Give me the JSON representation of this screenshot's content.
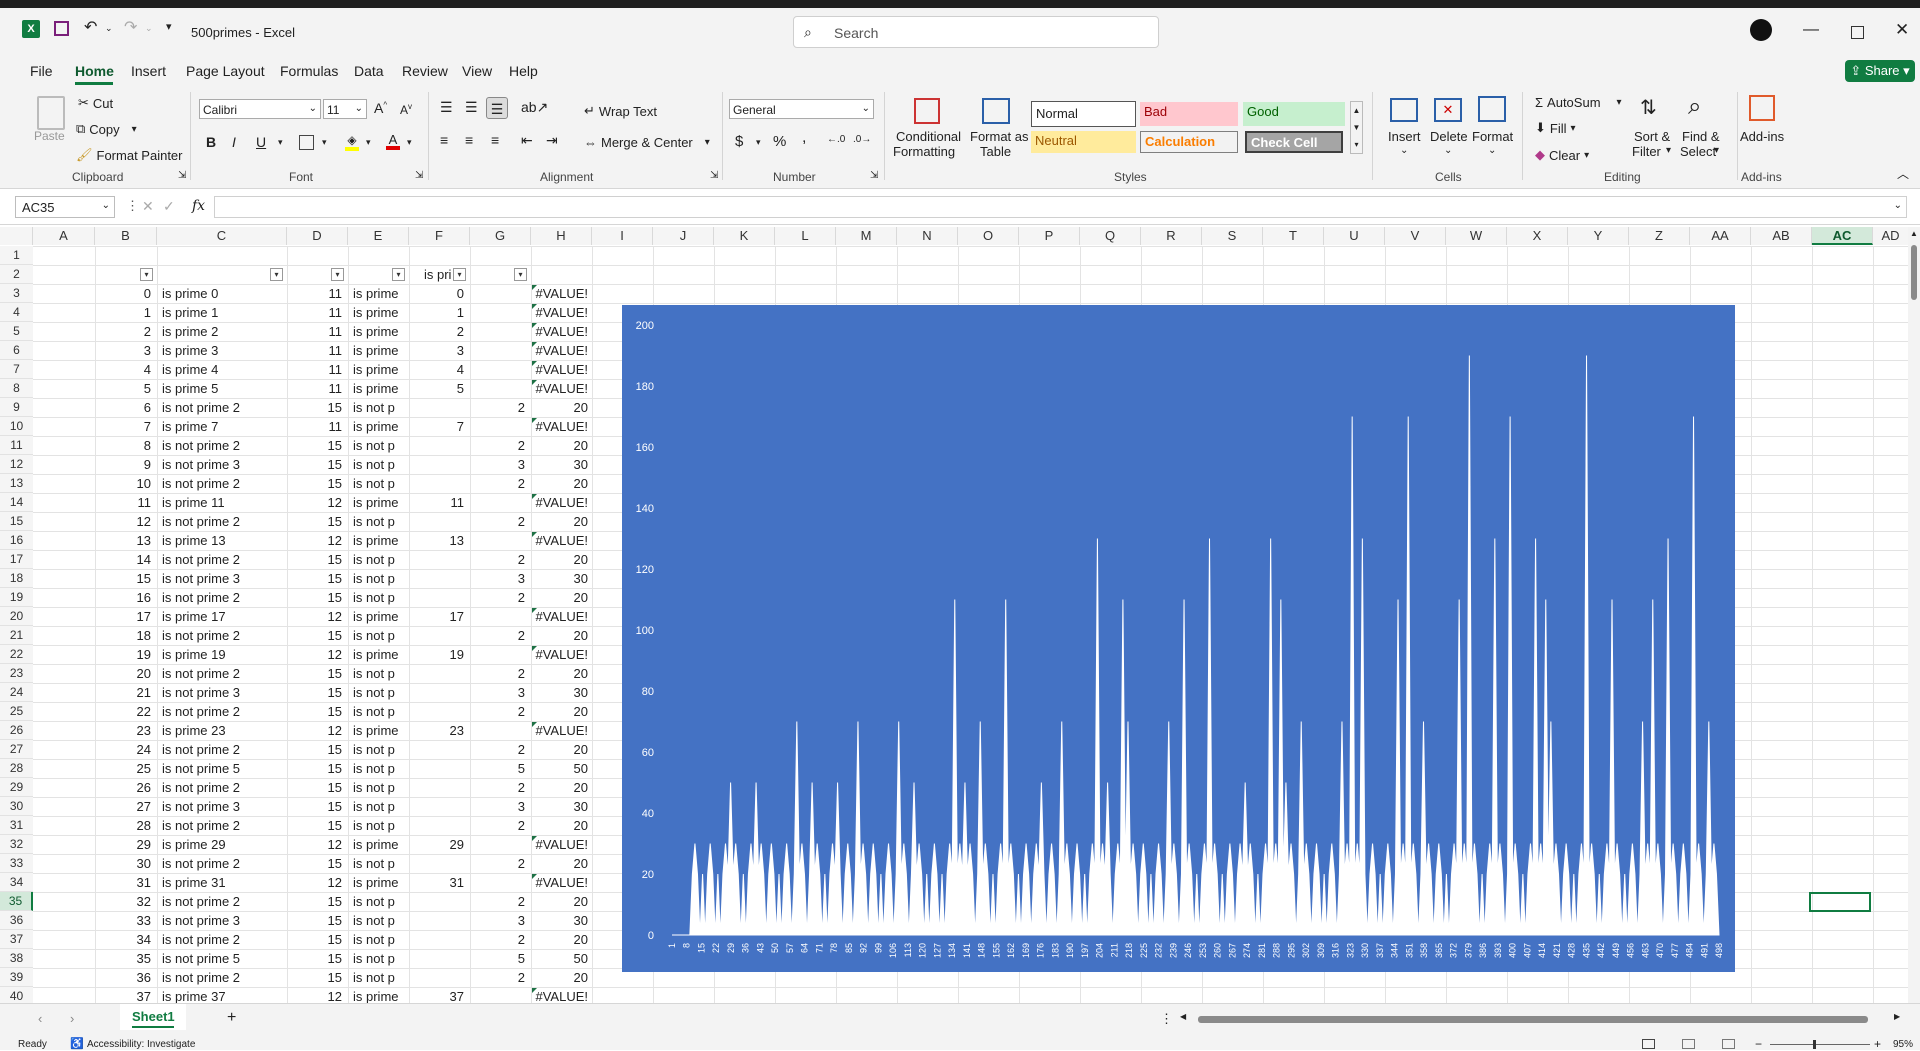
{
  "titlebar": {
    "doc_title": "500primes  -  Excel",
    "search_placeholder": "Search"
  },
  "menu": [
    "File",
    "Home",
    "Insert",
    "Page Layout",
    "Formulas",
    "Data",
    "Review",
    "View",
    "Help"
  ],
  "share_label": "Share",
  "ribbon": {
    "clipboard": {
      "paste": "Paste",
      "cut": "Cut",
      "copy": "Copy",
      "format_painter": "Format Painter",
      "label": "Clipboard"
    },
    "font": {
      "name": "Calibri",
      "size": "11",
      "label": "Font",
      "bold": "B",
      "italic": "I",
      "underline": "U"
    },
    "alignment": {
      "wrap": "Wrap Text",
      "merge": "Merge & Center",
      "label": "Alignment"
    },
    "number": {
      "format": "General",
      "currency": "$",
      "percent": "%",
      "label": "Number"
    },
    "styles": {
      "conditional": "Conditional",
      "conditional2": "Formatting",
      "format_table": "Format as",
      "format_table2": "Table",
      "normal": "Normal",
      "bad": "Bad",
      "good": "Good",
      "neutral": "Neutral",
      "calculation": "Calculation",
      "check_cell": "Check Cell",
      "label": "Styles"
    },
    "cells": {
      "insert": "Insert",
      "delete": "Delete",
      "format": "Format",
      "label": "Cells"
    },
    "editing": {
      "autosum": "AutoSum",
      "fill": "Fill",
      "clear": "Clear",
      "sort": "Sort &",
      "sort2": "Filter",
      "find": "Find &",
      "find2": "Select",
      "label": "Editing"
    },
    "addins": {
      "addins": "Add-ins",
      "label": "Add-ins"
    }
  },
  "formula_bar": {
    "name_box": "AC35",
    "fx": "fx",
    "formula": ""
  },
  "columns": [
    "A",
    "B",
    "C",
    "D",
    "E",
    "F",
    "G",
    "H",
    "I",
    "J",
    "K",
    "L",
    "M",
    "N",
    "O",
    "P",
    "Q",
    "R",
    "S",
    "T",
    "U",
    "V",
    "W",
    "X",
    "Y",
    "Z",
    "AA",
    "AB",
    "AC",
    "AD"
  ],
  "header_row": {
    "f_label": "is pri"
  },
  "rows": [
    {
      "n": "1"
    },
    {
      "n": "2"
    },
    {
      "n": "3",
      "b": "0",
      "c": "is prime 0",
      "d": "11",
      "e": "is prime",
      "f": "0",
      "g": "",
      "h": "#VALUE!"
    },
    {
      "n": "4",
      "b": "1",
      "c": "is prime 1",
      "d": "11",
      "e": "is prime",
      "f": "1",
      "g": "",
      "h": "#VALUE!"
    },
    {
      "n": "5",
      "b": "2",
      "c": "is prime 2",
      "d": "11",
      "e": "is prime",
      "f": "2",
      "g": "",
      "h": "#VALUE!"
    },
    {
      "n": "6",
      "b": "3",
      "c": "is prime 3",
      "d": "11",
      "e": "is prime",
      "f": "3",
      "g": "",
      "h": "#VALUE!"
    },
    {
      "n": "7",
      "b": "4",
      "c": "is prime 4",
      "d": "11",
      "e": "is prime",
      "f": "4",
      "g": "",
      "h": "#VALUE!"
    },
    {
      "n": "8",
      "b": "5",
      "c": "is prime 5",
      "d": "11",
      "e": "is prime",
      "f": "5",
      "g": "",
      "h": "#VALUE!"
    },
    {
      "n": "9",
      "b": "6",
      "c": "is not prime 2",
      "d": "15",
      "e": "is not p",
      "f": "",
      "g": "2",
      "h": "20"
    },
    {
      "n": "10",
      "b": "7",
      "c": "is prime 7",
      "d": "11",
      "e": "is prime",
      "f": "7",
      "g": "",
      "h": "#VALUE!"
    },
    {
      "n": "11",
      "b": "8",
      "c": "is not prime 2",
      "d": "15",
      "e": "is not p",
      "f": "",
      "g": "2",
      "h": "20"
    },
    {
      "n": "12",
      "b": "9",
      "c": "is not prime 3",
      "d": "15",
      "e": "is not p",
      "f": "",
      "g": "3",
      "h": "30"
    },
    {
      "n": "13",
      "b": "10",
      "c": "is not prime 2",
      "d": "15",
      "e": "is not p",
      "f": "",
      "g": "2",
      "h": "20"
    },
    {
      "n": "14",
      "b": "11",
      "c": "is prime 11",
      "d": "12",
      "e": "is prime",
      "f": "11",
      "g": "",
      "h": "#VALUE!"
    },
    {
      "n": "15",
      "b": "12",
      "c": "is not prime 2",
      "d": "15",
      "e": "is not p",
      "f": "",
      "g": "2",
      "h": "20"
    },
    {
      "n": "16",
      "b": "13",
      "c": "is prime 13",
      "d": "12",
      "e": "is prime",
      "f": "13",
      "g": "",
      "h": "#VALUE!"
    },
    {
      "n": "17",
      "b": "14",
      "c": "is not prime 2",
      "d": "15",
      "e": "is not p",
      "f": "",
      "g": "2",
      "h": "20"
    },
    {
      "n": "18",
      "b": "15",
      "c": "is not prime 3",
      "d": "15",
      "e": "is not p",
      "f": "",
      "g": "3",
      "h": "30"
    },
    {
      "n": "19",
      "b": "16",
      "c": "is not prime 2",
      "d": "15",
      "e": "is not p",
      "f": "",
      "g": "2",
      "h": "20"
    },
    {
      "n": "20",
      "b": "17",
      "c": "is prime 17",
      "d": "12",
      "e": "is prime",
      "f": "17",
      "g": "",
      "h": "#VALUE!"
    },
    {
      "n": "21",
      "b": "18",
      "c": "is not prime 2",
      "d": "15",
      "e": "is not p",
      "f": "",
      "g": "2",
      "h": "20"
    },
    {
      "n": "22",
      "b": "19",
      "c": "is prime 19",
      "d": "12",
      "e": "is prime",
      "f": "19",
      "g": "",
      "h": "#VALUE!"
    },
    {
      "n": "23",
      "b": "20",
      "c": "is not prime 2",
      "d": "15",
      "e": "is not p",
      "f": "",
      "g": "2",
      "h": "20"
    },
    {
      "n": "24",
      "b": "21",
      "c": "is not prime 3",
      "d": "15",
      "e": "is not p",
      "f": "",
      "g": "3",
      "h": "30"
    },
    {
      "n": "25",
      "b": "22",
      "c": "is not prime 2",
      "d": "15",
      "e": "is not p",
      "f": "",
      "g": "2",
      "h": "20"
    },
    {
      "n": "26",
      "b": "23",
      "c": "is prime 23",
      "d": "12",
      "e": "is prime",
      "f": "23",
      "g": "",
      "h": "#VALUE!"
    },
    {
      "n": "27",
      "b": "24",
      "c": "is not prime 2",
      "d": "15",
      "e": "is not p",
      "f": "",
      "g": "2",
      "h": "20"
    },
    {
      "n": "28",
      "b": "25",
      "c": "is not prime 5",
      "d": "15",
      "e": "is not p",
      "f": "",
      "g": "5",
      "h": "50"
    },
    {
      "n": "29",
      "b": "26",
      "c": "is not prime 2",
      "d": "15",
      "e": "is not p",
      "f": "",
      "g": "2",
      "h": "20"
    },
    {
      "n": "30",
      "b": "27",
      "c": "is not prime 3",
      "d": "15",
      "e": "is not p",
      "f": "",
      "g": "3",
      "h": "30"
    },
    {
      "n": "31",
      "b": "28",
      "c": "is not prime 2",
      "d": "15",
      "e": "is not p",
      "f": "",
      "g": "2",
      "h": "20"
    },
    {
      "n": "32",
      "b": "29",
      "c": "is prime 29",
      "d": "12",
      "e": "is prime",
      "f": "29",
      "g": "",
      "h": "#VALUE!"
    },
    {
      "n": "33",
      "b": "30",
      "c": "is not prime 2",
      "d": "15",
      "e": "is not p",
      "f": "",
      "g": "2",
      "h": "20"
    },
    {
      "n": "34",
      "b": "31",
      "c": "is prime 31",
      "d": "12",
      "e": "is prime",
      "f": "31",
      "g": "",
      "h": "#VALUE!"
    },
    {
      "n": "35",
      "b": "32",
      "c": "is not prime 2",
      "d": "15",
      "e": "is not p",
      "f": "",
      "g": "2",
      "h": "20"
    },
    {
      "n": "36",
      "b": "33",
      "c": "is not prime 3",
      "d": "15",
      "e": "is not p",
      "f": "",
      "g": "3",
      "h": "30"
    },
    {
      "n": "37",
      "b": "34",
      "c": "is not prime 2",
      "d": "15",
      "e": "is not p",
      "f": "",
      "g": "2",
      "h": "20"
    },
    {
      "n": "38",
      "b": "35",
      "c": "is not prime 5",
      "d": "15",
      "e": "is not p",
      "f": "",
      "g": "5",
      "h": "50"
    },
    {
      "n": "39",
      "b": "36",
      "c": "is not prime 2",
      "d": "15",
      "e": "is not p",
      "f": "",
      "g": "2",
      "h": "20"
    },
    {
      "n": "40",
      "b": "37",
      "c": "is prime 37",
      "d": "12",
      "e": "is prime",
      "f": "37",
      "g": "",
      "h": "#VALUE!"
    }
  ],
  "chart_data": {
    "type": "area",
    "title": "",
    "xlabel": "",
    "ylabel": "",
    "ylim": [
      0,
      200
    ],
    "yticks": [
      0,
      20,
      40,
      60,
      80,
      100,
      120,
      140,
      160,
      180,
      200
    ],
    "x_tick_labels": [
      "1",
      "8",
      "15",
      "22",
      "29",
      "36",
      "43",
      "50",
      "57",
      "64",
      "71",
      "78",
      "85",
      "92",
      "99",
      "106",
      "113",
      "120",
      "127",
      "134",
      "141",
      "148",
      "155",
      "162",
      "169",
      "176",
      "183",
      "190",
      "197",
      "204",
      "211",
      "218",
      "225",
      "232",
      "239",
      "246",
      "253",
      "260",
      "267",
      "274",
      "281",
      "288",
      "295",
      "302",
      "309",
      "316",
      "323",
      "330",
      "337",
      "344",
      "351",
      "358",
      "365",
      "372",
      "379",
      "386",
      "393",
      "400",
      "407",
      "414",
      "421",
      "428",
      "435",
      "442",
      "449",
      "456",
      "463",
      "470",
      "477",
      "484",
      "491",
      "498"
    ],
    "series": [
      {
        "values": [
          0,
          0,
          0,
          0,
          0,
          0,
          0,
          0,
          20,
          30,
          20,
          0,
          20,
          0,
          20,
          30,
          20,
          0,
          20,
          0,
          20,
          30,
          20,
          50,
          20,
          30,
          20,
          0,
          20,
          0,
          20,
          30,
          20,
          50,
          20,
          30,
          20,
          0,
          20,
          30,
          20,
          0,
          20,
          0,
          20,
          30,
          20,
          0,
          20,
          70,
          20,
          30,
          20,
          0,
          20,
          50,
          20,
          30,
          20,
          0,
          20,
          0,
          20,
          30,
          20,
          50,
          20,
          0,
          20,
          30,
          20,
          0,
          20,
          70,
          20,
          30,
          20,
          0,
          20,
          30,
          20,
          0,
          20,
          0,
          20,
          30,
          20,
          0,
          20,
          70,
          20,
          30,
          20,
          0,
          20,
          50,
          20,
          30,
          20,
          0,
          20,
          0,
          20,
          30,
          20,
          0,
          20,
          0,
          20,
          30,
          20,
          110,
          20,
          30,
          20,
          50,
          20,
          30,
          20,
          0,
          20,
          70,
          20,
          30,
          20,
          0,
          20,
          0,
          20,
          30,
          20,
          110,
          20,
          30,
          20,
          0,
          20,
          0,
          20,
          30,
          20,
          0,
          20,
          30,
          20,
          50,
          20,
          0,
          20,
          30,
          20,
          0,
          20,
          70,
          20,
          30,
          20,
          0,
          20,
          30,
          20,
          0,
          20,
          0,
          20,
          30,
          20,
          130,
          20,
          30,
          20,
          50,
          20,
          0,
          20,
          30,
          20,
          110,
          20,
          70,
          20,
          30,
          20,
          0,
          20,
          30,
          20,
          0,
          20,
          0,
          20,
          30,
          20,
          0,
          20,
          70,
          20,
          30,
          20,
          0,
          20,
          110,
          20,
          30,
          20,
          0,
          20,
          0,
          20,
          30,
          20,
          130,
          20,
          30,
          20,
          0,
          20,
          0,
          20,
          30,
          20,
          0,
          20,
          30,
          20,
          50,
          20,
          30,
          20,
          0,
          20,
          0,
          20,
          30,
          20,
          130,
          20,
          30,
          20,
          110,
          20,
          50,
          20,
          30,
          20,
          0,
          20,
          70,
          20,
          30,
          20,
          0,
          20,
          30,
          20,
          0,
          20,
          0,
          20,
          30,
          20,
          0,
          20,
          70,
          20,
          30,
          20,
          170,
          20,
          30,
          20,
          130,
          20,
          0,
          20,
          30,
          20,
          0,
          20,
          0,
          20,
          30,
          20,
          0,
          20,
          110,
          20,
          30,
          20,
          170,
          20,
          30,
          20,
          0,
          20,
          70,
          20,
          30,
          20,
          0,
          20,
          30,
          20,
          0,
          20,
          0,
          20,
          30,
          20,
          110,
          20,
          30,
          20,
          190,
          20,
          30,
          20,
          0,
          20,
          0,
          20,
          30,
          20,
          130,
          20,
          30,
          20,
          0,
          20,
          170,
          20,
          30,
          20,
          0,
          20,
          0,
          20,
          30,
          20,
          130,
          20,
          30,
          20,
          110,
          20,
          70,
          20,
          30,
          20,
          0,
          20,
          30,
          20,
          0,
          20,
          0,
          20,
          30,
          20,
          190,
          20,
          30,
          20,
          0,
          20,
          0,
          20,
          30,
          20,
          110,
          20,
          30,
          20,
          0,
          20,
          0,
          20,
          30,
          20,
          0,
          20,
          70,
          20,
          30,
          20,
          110,
          20,
          30,
          20,
          0,
          20,
          130,
          20,
          30,
          20,
          0,
          20,
          30,
          20,
          0,
          20,
          170,
          20,
          30,
          20,
          0,
          20,
          70,
          20,
          30,
          20,
          0
        ]
      }
    ],
    "colors": {
      "background": "#4472c4",
      "fill": "#ffffff",
      "text": "#ffffff"
    },
    "grid": false
  },
  "sheet_tabs": {
    "active": "Sheet1",
    "add": "+"
  },
  "status": {
    "ready": "Ready",
    "accessibility": "Accessibility: Investigate",
    "zoom": "95%"
  }
}
